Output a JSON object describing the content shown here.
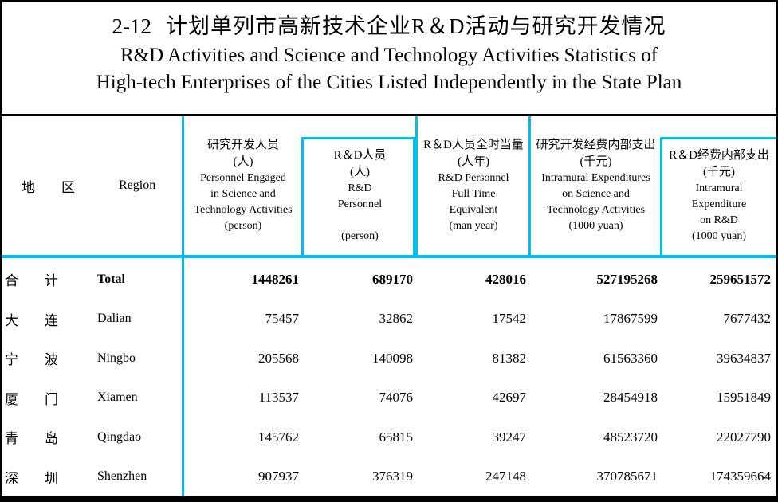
{
  "title": {
    "number": "2-12",
    "zh": "计划单列市高新技术企业R＆D活动与研究开发情况",
    "en_line1": "R&D Activities and Science and Technology Activities Statistics of",
    "en_line2": "High-tech Enterprises of the Cities Listed Independently in the State Plan"
  },
  "table": {
    "header": {
      "region": {
        "zh_char1": "地",
        "zh_char2": "区",
        "en": "Region"
      },
      "col1": {
        "lines": [
          "研究开发人员",
          "(人)",
          "Personnel Engaged",
          "in Science and",
          "Technology Activities",
          "(person)"
        ]
      },
      "col2": {
        "lines": [
          "R＆D人员",
          "(人)",
          "R&D",
          "Personnel",
          "",
          "(person)"
        ]
      },
      "col3": {
        "lines": [
          "R＆D人员全时当量",
          "(人年)",
          "R&D Personnel",
          "Full Time",
          "Equivalent",
          "(man year)"
        ]
      },
      "col4": {
        "lines": [
          "研究开发经费内部支出",
          "(千元)",
          "Intramural Expenditures",
          "on Science and",
          "Technology Activities",
          "(1000 yuan)"
        ]
      },
      "col5": {
        "lines": [
          "R＆D经费内部支出",
          "(千元)",
          "Intramural",
          "Expenditure",
          "on R&D",
          "(1000 yuan)"
        ]
      }
    },
    "rows": [
      {
        "zh1": "合",
        "zh2": "计",
        "en": "Total",
        "values": [
          "1448261",
          "689170",
          "428016",
          "527195268",
          "259651572"
        ]
      },
      {
        "zh1": "大",
        "zh2": "连",
        "en": "Dalian",
        "values": [
          "75457",
          "32862",
          "17542",
          "17867599",
          "7677432"
        ]
      },
      {
        "zh1": "宁",
        "zh2": "波",
        "en": "Ningbo",
        "values": [
          "205568",
          "140098",
          "81382",
          "61563360",
          "39634837"
        ]
      },
      {
        "zh1": "厦",
        "zh2": "门",
        "en": "Xiamen",
        "values": [
          "113537",
          "74076",
          "42697",
          "28454918",
          "15951849"
        ]
      },
      {
        "zh1": "青",
        "zh2": "岛",
        "en": "Qingdao",
        "values": [
          "145762",
          "65815",
          "39247",
          "48523720",
          "22027790"
        ]
      },
      {
        "zh1": "深",
        "zh2": "圳",
        "en": "Shenzhen",
        "values": [
          "907937",
          "376319",
          "247148",
          "370785671",
          "174359664"
        ]
      }
    ]
  },
  "colors": {
    "accent": "#00BFEF",
    "frame": "#000000"
  }
}
